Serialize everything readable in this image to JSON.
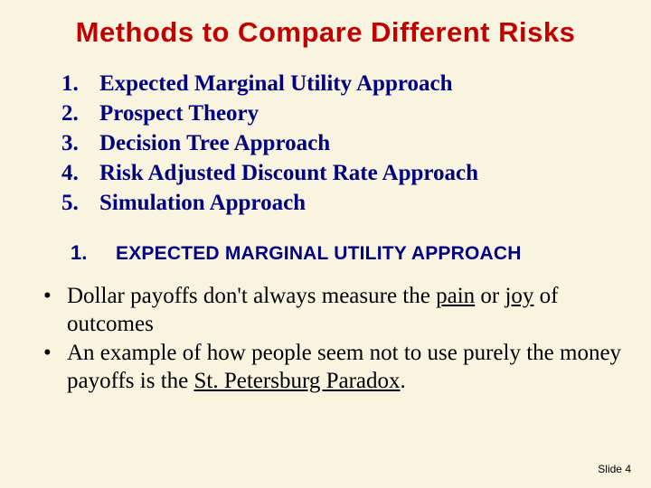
{
  "colors": {
    "background": "#f8f4df",
    "title": "#c00000",
    "accent": "#000080",
    "body": "#000000"
  },
  "title": "Methods to Compare Different Risks",
  "methods": [
    {
      "n": "1.",
      "label": "Expected Marginal Utility Approach"
    },
    {
      "n": "2.",
      "label": "Prospect Theory"
    },
    {
      "n": "3.",
      "label": "Decision Tree Approach"
    },
    {
      "n": "4.",
      "label": "Risk Adjusted Discount Rate Approach"
    },
    {
      "n": "5.",
      "label": "Simulation Approach"
    }
  ],
  "section": {
    "n": "1.",
    "label": "EXPECTED MARGINAL UTILITY APPROACH"
  },
  "bullets": {
    "b1": {
      "pre": "Dollar payoffs don't always measure the ",
      "u1": "pain",
      "mid": " or ",
      "u2": "joy",
      "post": " of outcomes"
    },
    "b2": {
      "pre": "An example of how people seem not to use purely the money payoffs is the ",
      "u1": "St. Petersburg Paradox",
      "post": "."
    }
  },
  "footer": "Slide 4",
  "dot": "•"
}
